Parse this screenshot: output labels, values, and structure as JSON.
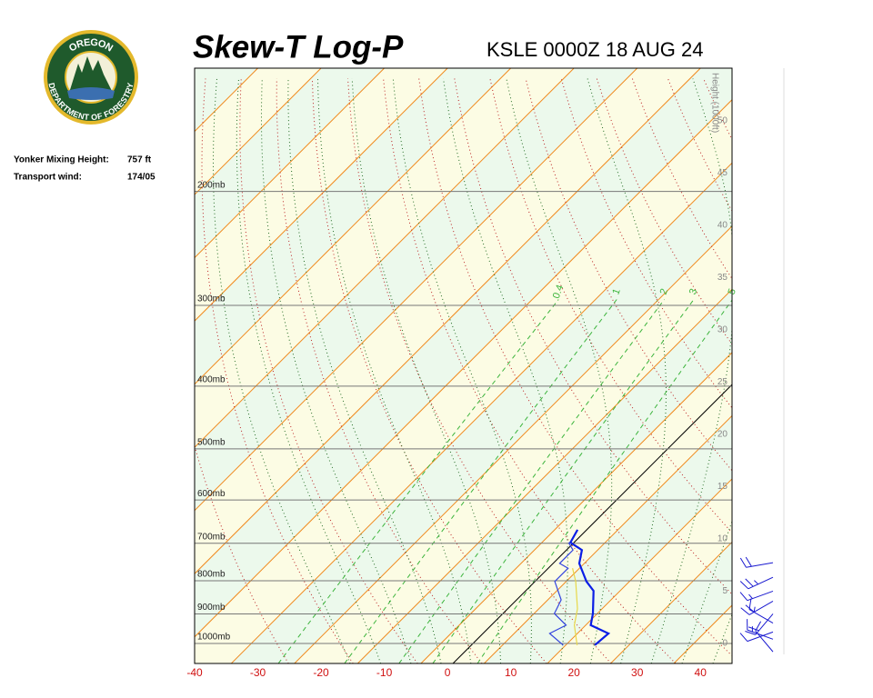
{
  "logo": {
    "top": "OREGON",
    "bottom": "DEPARTMENT OF FORESTRY"
  },
  "info": [
    {
      "label": "Yonker Mixing Height:",
      "value": "757 ft"
    },
    {
      "label": "Transport wind:",
      "value": "174/05"
    }
  ],
  "chart_data": {
    "type": "skew-t",
    "title": "Skew-T Log-P",
    "subtitle": "KSLE 0000Z 18 AUG 24",
    "xlim": [
      -40,
      45
    ],
    "ylim": [
      1074,
      129
    ],
    "xticks": [
      -40,
      -30,
      -20,
      -10,
      0,
      10,
      20,
      30,
      40
    ],
    "yticks": [
      {
        "value": 200,
        "label": "200mb"
      },
      {
        "value": 300,
        "label": "300mb"
      },
      {
        "value": 400,
        "label": "400mb"
      },
      {
        "value": 500,
        "label": "500mb"
      },
      {
        "value": 600,
        "label": "600mb"
      },
      {
        "value": 700,
        "label": "700mb"
      },
      {
        "value": 800,
        "label": "800mb"
      },
      {
        "value": 900,
        "label": "900mb"
      },
      {
        "value": 1000,
        "label": "1000mb"
      }
    ],
    "height_label": "Height (1000ft)",
    "height_ticks": [
      0,
      5,
      10,
      15,
      20,
      25,
      30,
      35,
      40,
      45,
      50
    ],
    "mixing_ratios": [
      0.4,
      1,
      2,
      3,
      5
    ],
    "series": [
      {
        "color": "#0a1ee6",
        "pressure": [
          1006,
          965,
          937,
          899,
          829,
          802,
          752,
          717,
          698,
          667
        ],
        "temperature": [
          20.4,
          20.7,
          16.6,
          15.1,
          11.6,
          9,
          5,
          3.3,
          0.3,
          -0.6
        ]
      },
      {
        "color": "#3344dd",
        "pressure": [
          1006,
          965,
          937,
          899,
          856,
          802,
          765,
          752,
          717,
          698
        ],
        "temperature": [
          15.4,
          11.4,
          12.7,
          9,
          7.9,
          4,
          4,
          1.9,
          1.9,
          0
        ]
      },
      {
        "color": "#e8d84a",
        "pressure": [
          1006,
          937,
          884,
          802,
          765
        ],
        "temperature": [
          17.6,
          14,
          11.9,
          7.3,
          4.7
        ]
      }
    ],
    "wind": {
      "color": "#1a1ad0",
      "pressure": [
        1030,
        985,
        960,
        930,
        900,
        860,
        830,
        790,
        750
      ],
      "direction": [
        320,
        290,
        250,
        300,
        220,
        240,
        250,
        245,
        260
      ],
      "speed": [
        10,
        15,
        10,
        15,
        20,
        20,
        15,
        25,
        20
      ]
    }
  }
}
